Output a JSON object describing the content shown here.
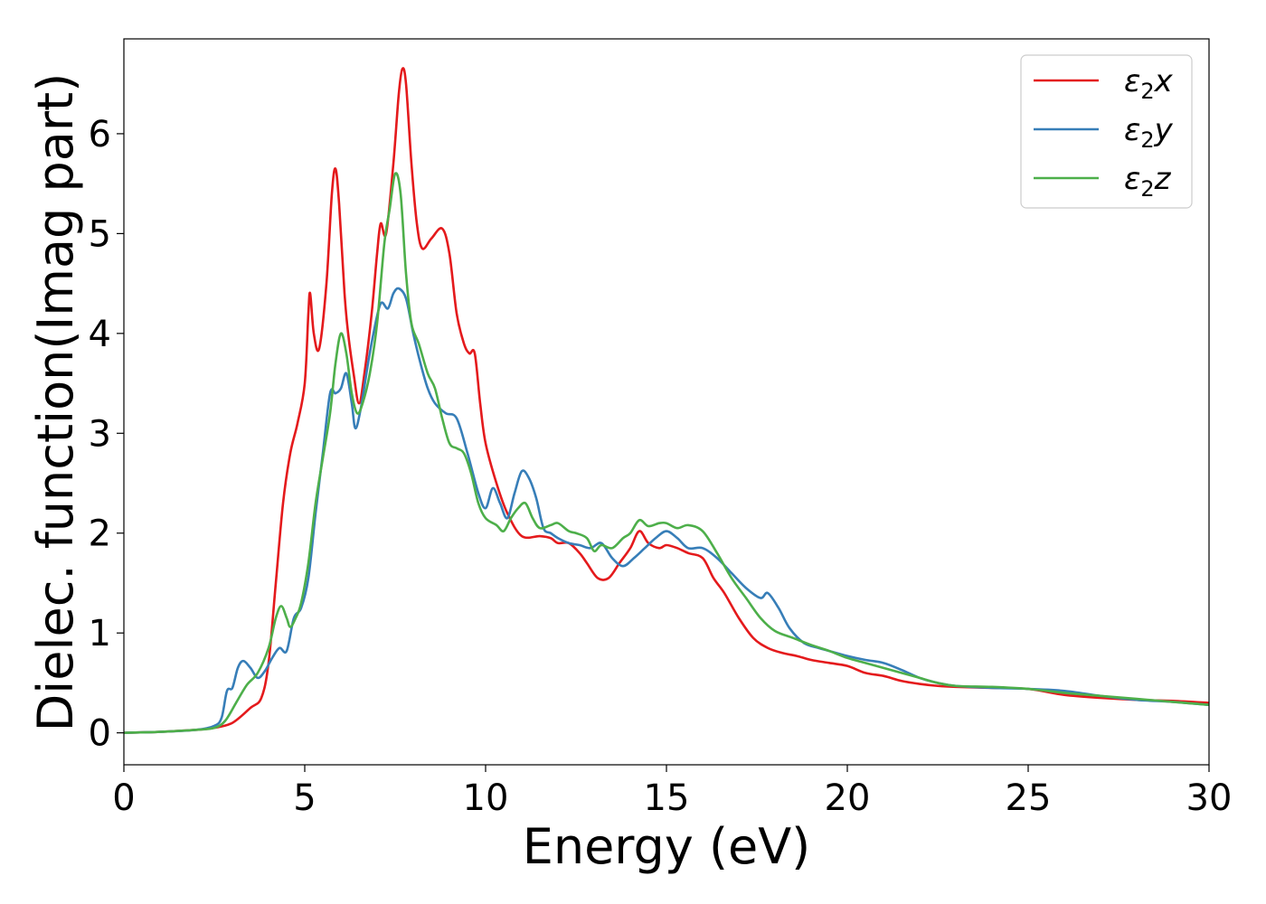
{
  "chart_data": {
    "type": "line",
    "title": "",
    "xlabel": "Energy (eV)",
    "ylabel": "Dielec. function(Imag part)",
    "xlim": [
      0,
      30
    ],
    "ylim": [
      -0.32,
      6.95
    ],
    "xticks": [
      0,
      5,
      10,
      15,
      20,
      25,
      30
    ],
    "xtick_labels": [
      "0",
      "5",
      "10",
      "15",
      "20",
      "25",
      "30"
    ],
    "yticks": [
      0,
      1,
      2,
      3,
      4,
      5,
      6
    ],
    "ytick_labels": [
      "0",
      "1",
      "2",
      "3",
      "4",
      "5",
      "6"
    ],
    "grid": false,
    "legend_position": "top-right",
    "series": [
      {
        "name": "ε₂x",
        "legend_parts": [
          "ε",
          "2",
          "x"
        ],
        "color": "#e41a1c",
        "points": [
          [
            0,
            0
          ],
          [
            1,
            0.01
          ],
          [
            2,
            0.03
          ],
          [
            2.5,
            0.05
          ],
          [
            3,
            0.1
          ],
          [
            3.5,
            0.25
          ],
          [
            3.8,
            0.35
          ],
          [
            4,
            0.7
          ],
          [
            4.2,
            1.5
          ],
          [
            4.4,
            2.3
          ],
          [
            4.6,
            2.8
          ],
          [
            4.8,
            3.1
          ],
          [
            5,
            3.5
          ],
          [
            5.1,
            4.2
          ],
          [
            5.15,
            4.4
          ],
          [
            5.25,
            4.0
          ],
          [
            5.4,
            3.85
          ],
          [
            5.6,
            4.5
          ],
          [
            5.75,
            5.4
          ],
          [
            5.85,
            5.65
          ],
          [
            5.95,
            5.3
          ],
          [
            6.1,
            4.4
          ],
          [
            6.2,
            4.0
          ],
          [
            6.35,
            3.6
          ],
          [
            6.5,
            3.3
          ],
          [
            6.65,
            3.6
          ],
          [
            6.85,
            4.2
          ],
          [
            7,
            4.8
          ],
          [
            7.1,
            5.1
          ],
          [
            7.25,
            5.0
          ],
          [
            7.45,
            5.7
          ],
          [
            7.6,
            6.4
          ],
          [
            7.7,
            6.65
          ],
          [
            7.8,
            6.5
          ],
          [
            7.95,
            5.7
          ],
          [
            8.1,
            5.1
          ],
          [
            8.25,
            4.85
          ],
          [
            8.5,
            4.95
          ],
          [
            8.8,
            5.05
          ],
          [
            9,
            4.8
          ],
          [
            9.2,
            4.2
          ],
          [
            9.4,
            3.9
          ],
          [
            9.55,
            3.8
          ],
          [
            9.7,
            3.8
          ],
          [
            9.85,
            3.3
          ],
          [
            10,
            2.9
          ],
          [
            10.3,
            2.5
          ],
          [
            10.6,
            2.2
          ],
          [
            11,
            1.97
          ],
          [
            11.5,
            1.97
          ],
          [
            11.8,
            1.95
          ],
          [
            12,
            1.9
          ],
          [
            12.3,
            1.9
          ],
          [
            12.6,
            1.8
          ],
          [
            12.8,
            1.7
          ],
          [
            13.1,
            1.55
          ],
          [
            13.4,
            1.55
          ],
          [
            13.7,
            1.7
          ],
          [
            14,
            1.85
          ],
          [
            14.25,
            2.02
          ],
          [
            14.5,
            1.9
          ],
          [
            14.8,
            1.85
          ],
          [
            15,
            1.88
          ],
          [
            15.3,
            1.85
          ],
          [
            15.6,
            1.8
          ],
          [
            16,
            1.75
          ],
          [
            16.3,
            1.55
          ],
          [
            16.6,
            1.4
          ],
          [
            17,
            1.15
          ],
          [
            17.4,
            0.95
          ],
          [
            17.8,
            0.85
          ],
          [
            18.2,
            0.8
          ],
          [
            18.6,
            0.77
          ],
          [
            19,
            0.73
          ],
          [
            19.5,
            0.7
          ],
          [
            20,
            0.67
          ],
          [
            20.5,
            0.6
          ],
          [
            21,
            0.57
          ],
          [
            21.5,
            0.52
          ],
          [
            22,
            0.49
          ],
          [
            22.5,
            0.47
          ],
          [
            23,
            0.46
          ],
          [
            24,
            0.45
          ],
          [
            25,
            0.44
          ],
          [
            26,
            0.38
          ],
          [
            27,
            0.35
          ],
          [
            28,
            0.33
          ],
          [
            29,
            0.32
          ],
          [
            30,
            0.3
          ]
        ]
      },
      {
        "name": "ε₂y",
        "legend_parts": [
          "ε",
          "2",
          "y"
        ],
        "color": "#377eb8",
        "points": [
          [
            0,
            0
          ],
          [
            1,
            0.01
          ],
          [
            2,
            0.03
          ],
          [
            2.5,
            0.07
          ],
          [
            2.7,
            0.15
          ],
          [
            2.85,
            0.42
          ],
          [
            3,
            0.45
          ],
          [
            3.15,
            0.65
          ],
          [
            3.3,
            0.72
          ],
          [
            3.5,
            0.65
          ],
          [
            3.7,
            0.55
          ],
          [
            3.9,
            0.62
          ],
          [
            4.1,
            0.75
          ],
          [
            4.3,
            0.85
          ],
          [
            4.5,
            0.82
          ],
          [
            4.7,
            1.15
          ],
          [
            4.9,
            1.25
          ],
          [
            5.1,
            1.55
          ],
          [
            5.3,
            2.2
          ],
          [
            5.5,
            2.8
          ],
          [
            5.7,
            3.4
          ],
          [
            5.85,
            3.4
          ],
          [
            6,
            3.45
          ],
          [
            6.15,
            3.6
          ],
          [
            6.3,
            3.3
          ],
          [
            6.4,
            3.05
          ],
          [
            6.55,
            3.25
          ],
          [
            6.75,
            3.7
          ],
          [
            6.9,
            4.0
          ],
          [
            7.1,
            4.3
          ],
          [
            7.3,
            4.25
          ],
          [
            7.45,
            4.4
          ],
          [
            7.6,
            4.45
          ],
          [
            7.8,
            4.35
          ],
          [
            8,
            4.0
          ],
          [
            8.2,
            3.7
          ],
          [
            8.4,
            3.45
          ],
          [
            8.6,
            3.3
          ],
          [
            8.9,
            3.2
          ],
          [
            9.2,
            3.15
          ],
          [
            9.5,
            2.8
          ],
          [
            9.8,
            2.4
          ],
          [
            10,
            2.25
          ],
          [
            10.2,
            2.45
          ],
          [
            10.4,
            2.3
          ],
          [
            10.6,
            2.15
          ],
          [
            10.8,
            2.4
          ],
          [
            11,
            2.62
          ],
          [
            11.2,
            2.55
          ],
          [
            11.4,
            2.35
          ],
          [
            11.6,
            2.05
          ],
          [
            11.8,
            2.0
          ],
          [
            12,
            1.95
          ],
          [
            12.3,
            1.9
          ],
          [
            12.6,
            1.88
          ],
          [
            12.9,
            1.85
          ],
          [
            13.2,
            1.9
          ],
          [
            13.5,
            1.75
          ],
          [
            13.8,
            1.67
          ],
          [
            14.1,
            1.75
          ],
          [
            14.4,
            1.85
          ],
          [
            14.7,
            1.95
          ],
          [
            15,
            2.02
          ],
          [
            15.3,
            1.95
          ],
          [
            15.6,
            1.85
          ],
          [
            16,
            1.85
          ],
          [
            16.4,
            1.75
          ],
          [
            16.8,
            1.6
          ],
          [
            17.2,
            1.45
          ],
          [
            17.6,
            1.35
          ],
          [
            17.8,
            1.4
          ],
          [
            18.1,
            1.25
          ],
          [
            18.4,
            1.05
          ],
          [
            18.8,
            0.9
          ],
          [
            19.2,
            0.85
          ],
          [
            19.5,
            0.82
          ],
          [
            20,
            0.77
          ],
          [
            20.5,
            0.73
          ],
          [
            21,
            0.7
          ],
          [
            21.5,
            0.63
          ],
          [
            22,
            0.55
          ],
          [
            22.5,
            0.5
          ],
          [
            23,
            0.47
          ],
          [
            24,
            0.45
          ],
          [
            25,
            0.44
          ],
          [
            26,
            0.42
          ],
          [
            27,
            0.37
          ],
          [
            28,
            0.33
          ],
          [
            29,
            0.31
          ],
          [
            30,
            0.28
          ]
        ]
      },
      {
        "name": "ε₂z",
        "legend_parts": [
          "ε",
          "2",
          "z"
        ],
        "color": "#4daf4a",
        "points": [
          [
            0,
            0
          ],
          [
            1,
            0.01
          ],
          [
            2,
            0.03
          ],
          [
            2.5,
            0.05
          ],
          [
            2.8,
            0.12
          ],
          [
            3.1,
            0.3
          ],
          [
            3.4,
            0.48
          ],
          [
            3.7,
            0.6
          ],
          [
            4,
            0.85
          ],
          [
            4.2,
            1.15
          ],
          [
            4.35,
            1.27
          ],
          [
            4.5,
            1.15
          ],
          [
            4.6,
            1.06
          ],
          [
            4.75,
            1.15
          ],
          [
            4.9,
            1.3
          ],
          [
            5.1,
            1.7
          ],
          [
            5.3,
            2.3
          ],
          [
            5.5,
            2.75
          ],
          [
            5.7,
            3.2
          ],
          [
            5.85,
            3.7
          ],
          [
            6,
            4.0
          ],
          [
            6.15,
            3.8
          ],
          [
            6.3,
            3.4
          ],
          [
            6.45,
            3.2
          ],
          [
            6.6,
            3.3
          ],
          [
            6.8,
            3.6
          ],
          [
            7,
            4.1
          ],
          [
            7.2,
            4.9
          ],
          [
            7.35,
            5.25
          ],
          [
            7.5,
            5.6
          ],
          [
            7.65,
            5.4
          ],
          [
            7.8,
            4.6
          ],
          [
            7.95,
            4.1
          ],
          [
            8.15,
            3.9
          ],
          [
            8.4,
            3.6
          ],
          [
            8.6,
            3.45
          ],
          [
            8.8,
            3.15
          ],
          [
            9,
            2.9
          ],
          [
            9.2,
            2.85
          ],
          [
            9.4,
            2.8
          ],
          [
            9.6,
            2.6
          ],
          [
            9.8,
            2.3
          ],
          [
            10,
            2.15
          ],
          [
            10.3,
            2.08
          ],
          [
            10.5,
            2.02
          ],
          [
            10.7,
            2.15
          ],
          [
            10.9,
            2.25
          ],
          [
            11.1,
            2.3
          ],
          [
            11.3,
            2.15
          ],
          [
            11.5,
            2.05
          ],
          [
            11.8,
            2.08
          ],
          [
            12,
            2.1
          ],
          [
            12.3,
            2.02
          ],
          [
            12.5,
            2.0
          ],
          [
            12.8,
            1.95
          ],
          [
            13,
            1.82
          ],
          [
            13.2,
            1.88
          ],
          [
            13.5,
            1.85
          ],
          [
            13.8,
            1.95
          ],
          [
            14,
            2.0
          ],
          [
            14.25,
            2.13
          ],
          [
            14.5,
            2.07
          ],
          [
            14.8,
            2.1
          ],
          [
            15,
            2.1
          ],
          [
            15.3,
            2.05
          ],
          [
            15.6,
            2.08
          ],
          [
            16,
            2.02
          ],
          [
            16.4,
            1.8
          ],
          [
            16.8,
            1.55
          ],
          [
            17.2,
            1.35
          ],
          [
            17.6,
            1.15
          ],
          [
            18,
            1.02
          ],
          [
            18.5,
            0.95
          ],
          [
            19,
            0.88
          ],
          [
            19.5,
            0.82
          ],
          [
            20,
            0.75
          ],
          [
            20.5,
            0.7
          ],
          [
            21,
            0.65
          ],
          [
            21.5,
            0.6
          ],
          [
            22,
            0.55
          ],
          [
            22.5,
            0.5
          ],
          [
            23,
            0.47
          ],
          [
            24,
            0.46
          ],
          [
            25,
            0.44
          ],
          [
            26,
            0.4
          ],
          [
            27,
            0.37
          ],
          [
            28,
            0.34
          ],
          [
            29,
            0.31
          ],
          [
            30,
            0.28
          ]
        ]
      }
    ]
  }
}
